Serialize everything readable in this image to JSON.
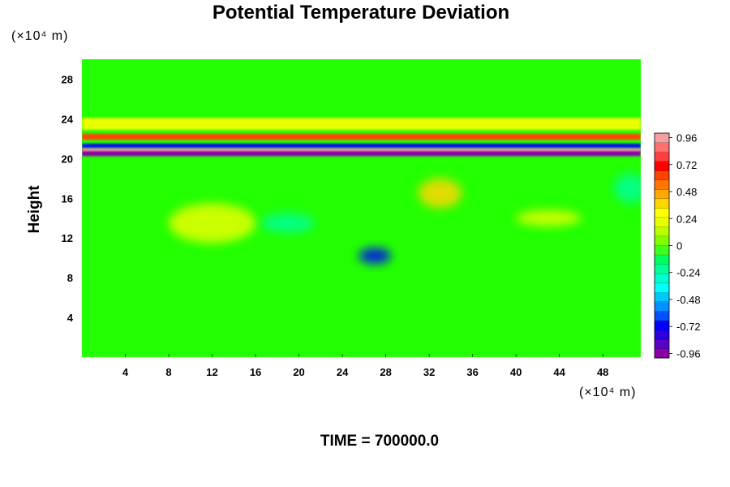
{
  "chart_data": {
    "type": "heatmap",
    "title": "Potential Temperature Deviation",
    "ylabel": "Height",
    "xlabel": "",
    "x_unit": "(×10⁴ m)",
    "y_unit": "(×10⁴ m)",
    "xlim": [
      0,
      51.5
    ],
    "ylim": [
      0,
      30
    ],
    "x_ticks": [
      "4",
      "8",
      "12",
      "16",
      "20",
      "24",
      "28",
      "32",
      "36",
      "40",
      "44",
      "48"
    ],
    "y_ticks": [
      "4",
      "8",
      "12",
      "16",
      "20",
      "24",
      "28"
    ],
    "colorbar": {
      "range": [
        -1,
        1
      ],
      "tick_labels": [
        "0.96",
        "0.72",
        "0.48",
        "0.24",
        "0",
        "-0.24",
        "-0.48",
        "-0.72",
        "-0.96"
      ],
      "colors": [
        "#8a00a8",
        "#5a00c8",
        "#2a00e0",
        "#0000ff",
        "#0050ff",
        "#0090ff",
        "#00c8ff",
        "#00ffff",
        "#00ffd0",
        "#00ff99",
        "#00ff60",
        "#40ff20",
        "#80ff00",
        "#b8ff00",
        "#e8ff00",
        "#ffff00",
        "#ffd700",
        "#ffaa00",
        "#ff7700",
        "#ff4400",
        "#ff0000",
        "#ff4040",
        "#ff7070",
        "#f4a0a0"
      ]
    },
    "background_color": "#22ff00",
    "features": [
      {
        "kind": "band",
        "y": 20.6,
        "thickness": 0.7,
        "value": -0.96
      },
      {
        "kind": "band",
        "y": 20.9,
        "thickness": 0.3,
        "value": 0.96
      },
      {
        "kind": "band",
        "y": 21.3,
        "thickness": 0.4,
        "value": -0.72
      },
      {
        "kind": "band",
        "y": 22.2,
        "thickness": 0.6,
        "value": 0.6
      },
      {
        "kind": "band",
        "y": 23.5,
        "thickness": 1.2,
        "value": 0.24
      },
      {
        "kind": "blob",
        "x": 12,
        "y": 13.5,
        "rx": 4,
        "ry": 2,
        "value": 0.24
      },
      {
        "kind": "blob",
        "x": 27,
        "y": 10.2,
        "rx": 1.5,
        "ry": 0.8,
        "value": -0.72
      },
      {
        "kind": "blob",
        "x": 33,
        "y": 16.5,
        "rx": 2,
        "ry": 1.5,
        "value": 0.36
      },
      {
        "kind": "blob",
        "x": 43,
        "y": 14,
        "rx": 3,
        "ry": 0.8,
        "value": 0.24
      },
      {
        "kind": "blob",
        "x": 19,
        "y": 13.5,
        "rx": 2.5,
        "ry": 1,
        "value": -0.24
      },
      {
        "kind": "blob",
        "x": 50.5,
        "y": 17,
        "rx": 1.5,
        "ry": 1.5,
        "value": -0.24
      }
    ]
  },
  "footer": {
    "time_label": "TIME = 700000.0"
  }
}
